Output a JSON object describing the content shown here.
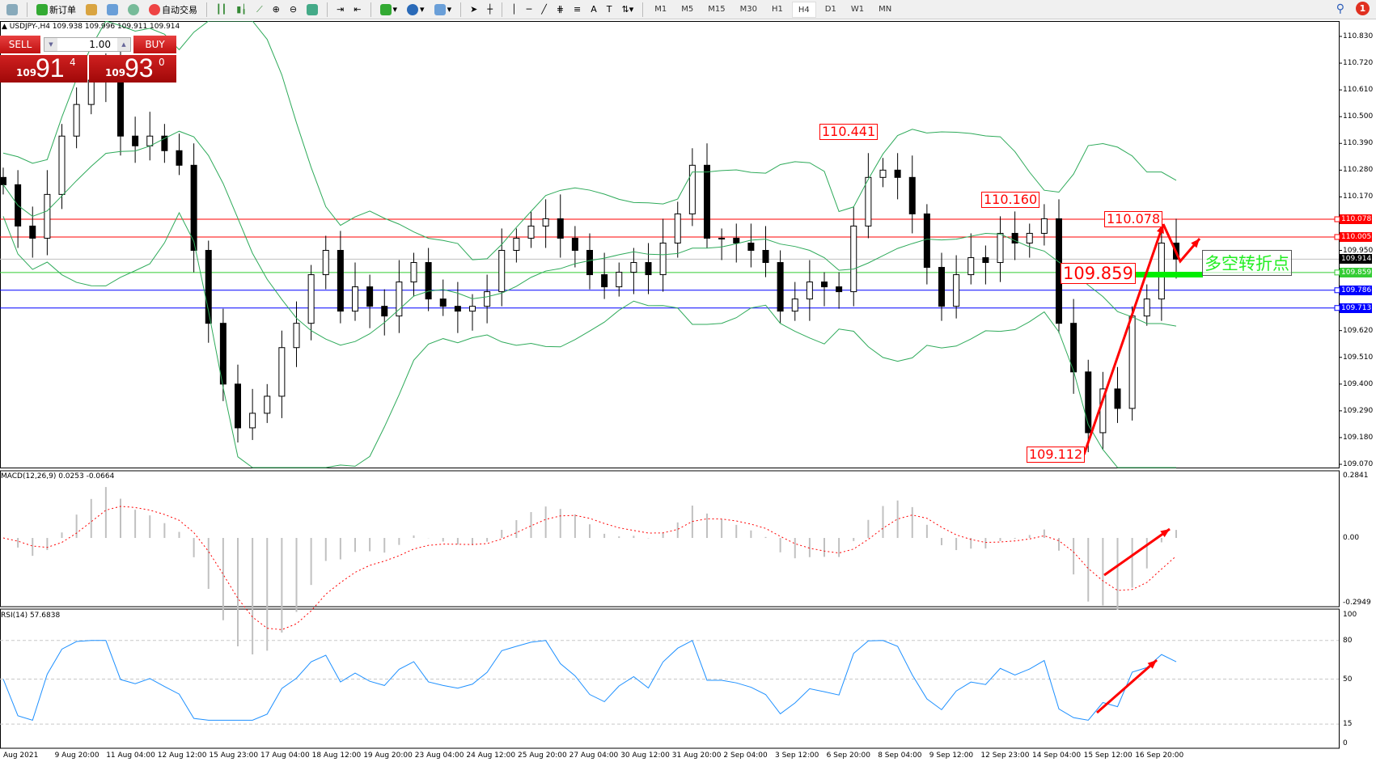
{
  "toolbar": {
    "new_order": "新订单",
    "auto_trading": "自动交易",
    "timeframes": [
      "M1",
      "M5",
      "M15",
      "M30",
      "H1",
      "H4",
      "D1",
      "W1",
      "MN"
    ],
    "active_timeframe": "H4",
    "notifications": "1"
  },
  "symbol_header": "USDJPY-,H4  109.938 109.996 109.911 109.914",
  "trade_panel": {
    "sell_label": "SELL",
    "buy_label": "BUY",
    "lot": "1.00",
    "sell_prefix": "109",
    "sell_big": "91",
    "sell_sup": "4",
    "buy_prefix": "109",
    "buy_big": "93",
    "buy_sup": "0"
  },
  "price_axis": {
    "ticks": [
      "110.830",
      "110.720",
      "110.610",
      "110.500",
      "110.390",
      "110.280",
      "110.170",
      "109.950",
      "109.620",
      "109.510",
      "109.400",
      "109.290",
      "109.180",
      "109.070"
    ],
    "range": [
      109.07,
      110.83
    ]
  },
  "levels": [
    {
      "price": "110.078",
      "color": "#ff0000"
    },
    {
      "price": "110.005",
      "color": "#ff0000"
    },
    {
      "price": "109.914",
      "color": "#000000",
      "current": true
    },
    {
      "price": "109.859",
      "color": "#33cc33"
    },
    {
      "price": "109.786",
      "color": "#0000ff"
    },
    {
      "price": "109.713",
      "color": "#0000ff"
    }
  ],
  "annotations": {
    "high1": "110.441",
    "high2": "110.160",
    "high3": "110.078",
    "mid": "109.859",
    "low": "109.112",
    "pivot_text": "多空转折点"
  },
  "macd": {
    "label": "MACD(12,26,9) 0.0253 -0.0664",
    "ticks": [
      "0.2841",
      "0.00",
      "-0.2949"
    ]
  },
  "rsi": {
    "label": "RSI(14) 57.6838",
    "ticks": [
      "100",
      "80",
      "50",
      "15",
      "0"
    ]
  },
  "time_axis": [
    "Aug 2021",
    "9 Aug 20:00",
    "11 Aug 04:00",
    "12 Aug 12:00",
    "15 Aug 23:00",
    "17 Aug 04:00",
    "18 Aug 12:00",
    "19 Aug 20:00",
    "23 Aug 04:00",
    "24 Aug 12:00",
    "25 Aug 20:00",
    "27 Aug 04:00",
    "30 Aug 12:00",
    "31 Aug 20:00",
    "2 Sep 04:00",
    "3 Sep 12:00",
    "6 Sep 20:00",
    "8 Sep 04:00",
    "9 Sep 12:00",
    "12 Sep 23:00",
    "14 Sep 04:00",
    "15 Sep 12:00",
    "16 Sep 20:00"
  ],
  "chart_data": {
    "type": "candlestick",
    "symbol": "USDJPY",
    "timeframe": "H4",
    "closes": [
      110.22,
      110.05,
      110.0,
      110.18,
      110.42,
      110.55,
      110.65,
      110.72,
      110.42,
      110.38,
      110.42,
      110.36,
      110.3,
      109.95,
      109.65,
      109.4,
      109.22,
      109.28,
      109.35,
      109.55,
      109.65,
      109.85,
      109.95,
      109.7,
      109.8,
      109.72,
      109.68,
      109.82,
      109.9,
      109.75,
      109.72,
      109.7,
      109.72,
      109.78,
      109.95,
      110.0,
      110.05,
      110.08,
      110.0,
      109.95,
      109.85,
      109.8,
      109.86,
      109.9,
      109.85,
      109.98,
      110.1,
      110.3,
      110.0,
      110.0,
      109.98,
      109.95,
      109.9,
      109.7,
      109.75,
      109.82,
      109.8,
      109.78,
      110.05,
      110.25,
      110.28,
      110.25,
      110.1,
      109.88,
      109.72,
      109.85,
      109.92,
      109.9,
      110.02,
      109.98,
      110.02,
      110.08,
      109.65,
      109.45,
      109.2,
      109.38,
      109.3,
      109.68,
      109.75,
      109.98,
      109.914
    ]
  }
}
